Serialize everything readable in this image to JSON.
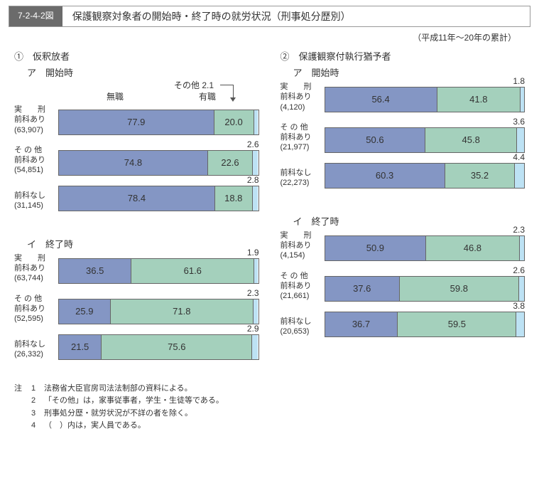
{
  "title_tag": "7-2-4-2図",
  "title_text": "保護観察対象者の開始時・終了時の就労状況（刑事処分歴別）",
  "subtitle": "（平成11年～20年の累計）",
  "legend": {
    "mushoku": "無職",
    "yushoku": "有職",
    "sonota_label": "その他 2.1"
  },
  "colors": {
    "mushoku": "#8496c4",
    "yushoku": "#a4d0bc",
    "sonota": "#bde2f4",
    "border": "#666666"
  },
  "panels": [
    {
      "num": "①",
      "title": "仮釈放者",
      "sections": [
        {
          "label": "ア　開始時",
          "rows": [
            {
              "cat1": "実　　刑",
              "cat2": "前科あり",
              "n": "(63,907)",
              "v": [
                77.9,
                20.0,
                2.1
              ],
              "show_other_top": false
            },
            {
              "cat1": "そ の 他",
              "cat2": "前科あり",
              "n": "(54,851)",
              "v": [
                74.8,
                22.6,
                2.6
              ],
              "show_other_top": true,
              "other": "2.6"
            },
            {
              "cat1": "前科なし",
              "cat2": "",
              "n": "(31,145)",
              "v": [
                78.4,
                18.8,
                2.8
              ],
              "show_other_top": true,
              "other": "2.8"
            }
          ]
        },
        {
          "label": "イ　終了時",
          "rows": [
            {
              "cat1": "実　　刑",
              "cat2": "前科あり",
              "n": "(63,744)",
              "v": [
                36.5,
                61.6,
                1.9
              ],
              "show_other_top": true,
              "other": "1.9"
            },
            {
              "cat1": "そ の 他",
              "cat2": "前科あり",
              "n": "(52,595)",
              "v": [
                25.9,
                71.8,
                2.3
              ],
              "show_other_top": true,
              "other": "2.3"
            },
            {
              "cat1": "前科なし",
              "cat2": "",
              "n": "(26,332)",
              "v": [
                21.5,
                75.6,
                2.9
              ],
              "show_other_top": true,
              "other": "2.9"
            }
          ]
        }
      ]
    },
    {
      "num": "②",
      "title": "保護観察付執行猶予者",
      "sections": [
        {
          "label": "ア　開始時",
          "rows": [
            {
              "cat1": "実　　刑",
              "cat2": "前科あり",
              "n": "(4,120)",
              "v": [
                56.4,
                41.8,
                1.8
              ],
              "show_other_top": true,
              "other": "1.8"
            },
            {
              "cat1": "そ の 他",
              "cat2": "前科あり",
              "n": "(21,977)",
              "v": [
                50.6,
                45.8,
                3.6
              ],
              "show_other_top": true,
              "other": "3.6"
            },
            {
              "cat1": "前科なし",
              "cat2": "",
              "n": "(22,273)",
              "v": [
                60.3,
                35.2,
                4.4
              ],
              "show_other_top": true,
              "other": "4.4"
            }
          ]
        },
        {
          "label": "イ　終了時",
          "rows": [
            {
              "cat1": "実　　刑",
              "cat2": "前科あり",
              "n": "(4,154)",
              "v": [
                50.9,
                46.8,
                2.3
              ],
              "show_other_top": true,
              "other": "2.3"
            },
            {
              "cat1": "そ の 他",
              "cat2": "前科あり",
              "n": "(21,661)",
              "v": [
                37.6,
                59.8,
                2.6
              ],
              "show_other_top": true,
              "other": "2.6"
            },
            {
              "cat1": "前科なし",
              "cat2": "",
              "n": "(20,653)",
              "v": [
                36.7,
                59.5,
                3.8
              ],
              "show_other_top": true,
              "other": "3.8"
            }
          ]
        }
      ]
    }
  ],
  "notes_head": "注",
  "notes": [
    {
      "n": "1",
      "t": "法務省大臣官房司法法制部の資料による。"
    },
    {
      "n": "2",
      "t": "「その他」は，家事従事者，学生・生徒等である。"
    },
    {
      "n": "3",
      "t": "刑事処分歴・就労状況が不詳の者を除く。"
    },
    {
      "n": "4",
      "t": "（　）内は，実人員である。"
    }
  ]
}
